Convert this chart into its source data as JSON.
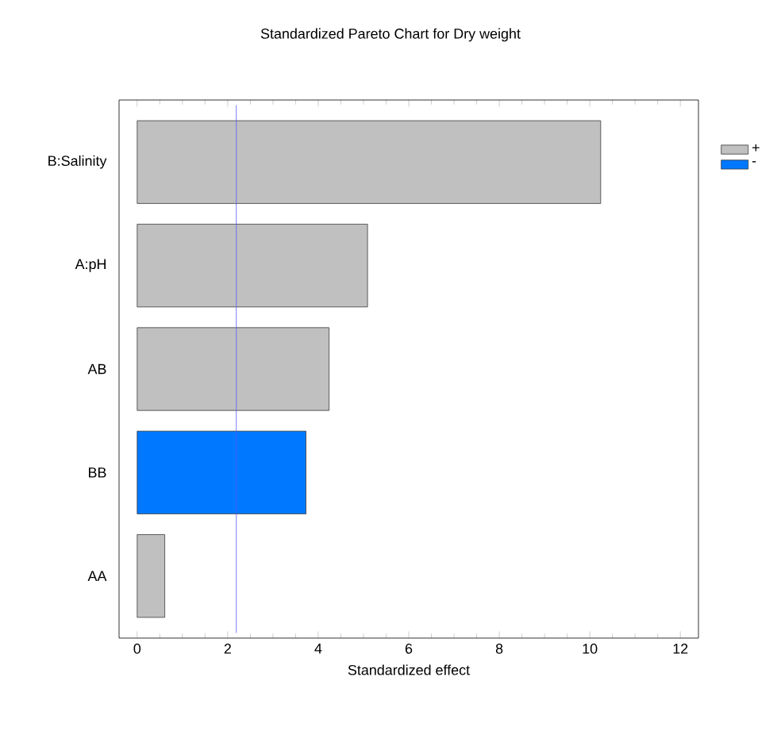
{
  "chart_data": {
    "type": "bar",
    "orientation": "horizontal",
    "title": "Standardized Pareto Chart for Dry weight",
    "xlabel": "Standardized effect",
    "categories": [
      "B:Salinity",
      "A:pH",
      "AB",
      "BB",
      "AA"
    ],
    "series": [
      {
        "name": "+",
        "color": "#c0c0c0",
        "values": [
          10.24,
          5.09,
          4.24,
          null,
          0.61
        ]
      },
      {
        "name": "-",
        "color": "#0078ff",
        "values": [
          null,
          null,
          null,
          3.73,
          null
        ]
      }
    ],
    "xlim": [
      -0.4,
      12.4
    ],
    "xticks": [
      0,
      2,
      4,
      6,
      8,
      10,
      12
    ],
    "ref_lines": [
      {
        "axis": "x",
        "value": 2.19,
        "color": "#5a5aff"
      }
    ],
    "legend": "right",
    "grid": false
  }
}
